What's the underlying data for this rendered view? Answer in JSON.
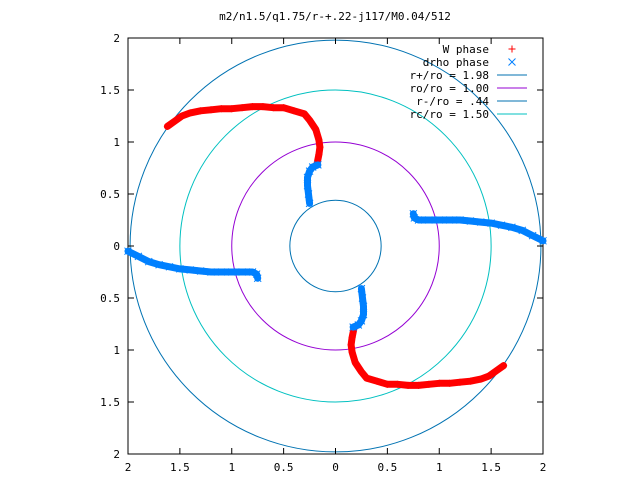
{
  "chart_data": {
    "type": "scatter",
    "title": "m2/n1.5/q1.75/r-+.22-j117/M0.04/512",
    "xlabel": "",
    "ylabel": "",
    "xlim": [
      -2,
      2
    ],
    "ylim": [
      -2,
      2
    ],
    "x_ticks": [
      {
        "value": -2,
        "label": "2"
      },
      {
        "value": -1.5,
        "label": "1.5"
      },
      {
        "value": -1,
        "label": "1"
      },
      {
        "value": -0.5,
        "label": "0.5"
      },
      {
        "value": 0,
        "label": "0"
      },
      {
        "value": 0.5,
        "label": "0.5"
      },
      {
        "value": 1,
        "label": "1"
      },
      {
        "value": 1.5,
        "label": "1.5"
      },
      {
        "value": 2,
        "label": "2"
      }
    ],
    "y_ticks": [
      {
        "value": 2,
        "label": "2"
      },
      {
        "value": 1.5,
        "label": "1.5"
      },
      {
        "value": 1,
        "label": "1"
      },
      {
        "value": 0.5,
        "label": "0.5"
      },
      {
        "value": 0,
        "label": "0"
      },
      {
        "value": -0.5,
        "label": "0.5"
      },
      {
        "value": -1,
        "label": "1"
      },
      {
        "value": -1.5,
        "label": "1.5"
      },
      {
        "value": -2,
        "label": "2"
      }
    ],
    "grid": false,
    "legend_position": "top-right",
    "series": [
      {
        "name": "W phase",
        "marker": "plus",
        "color": "#ff0000",
        "x": [
          -1.62,
          -1.55,
          -1.48,
          -1.4,
          -1.3,
          -1.2,
          -1.1,
          -1.0,
          -0.9,
          -0.8,
          -0.7,
          -0.6,
          -0.5,
          -0.4,
          -0.3,
          -0.25,
          -0.19,
          -0.16,
          -0.15,
          -0.16,
          -0.18,
          1.62,
          1.55,
          1.48,
          1.4,
          1.3,
          1.2,
          1.1,
          1.0,
          0.9,
          0.8,
          0.7,
          0.6,
          0.5,
          0.4,
          0.3,
          0.25,
          0.19,
          0.16,
          0.15,
          0.16,
          0.18
        ],
        "y": [
          1.15,
          1.2,
          1.25,
          1.28,
          1.3,
          1.31,
          1.32,
          1.32,
          1.33,
          1.34,
          1.34,
          1.33,
          1.33,
          1.3,
          1.27,
          1.21,
          1.12,
          1.02,
          0.95,
          0.88,
          0.78,
          -1.15,
          -1.2,
          -1.25,
          -1.28,
          -1.3,
          -1.31,
          -1.32,
          -1.32,
          -1.33,
          -1.34,
          -1.34,
          -1.33,
          -1.33,
          -1.3,
          -1.27,
          -1.21,
          -1.12,
          -1.02,
          -0.95,
          -0.88,
          -0.78
        ]
      },
      {
        "name": "drho phase",
        "marker": "cross",
        "color": "#0080ff",
        "x": [
          -2.0,
          -1.9,
          -1.8,
          -1.7,
          -1.6,
          -1.5,
          -1.4,
          -1.3,
          -1.2,
          -1.1,
          -1.0,
          -0.9,
          -0.8,
          -0.76,
          -0.75,
          -0.25,
          -0.26,
          -0.27,
          -0.27,
          -0.25,
          -0.22,
          -0.17,
          2.0,
          1.9,
          1.8,
          1.7,
          1.6,
          1.5,
          1.4,
          1.3,
          1.2,
          1.1,
          1.0,
          0.9,
          0.8,
          0.76,
          0.75,
          0.25,
          0.26,
          0.27,
          0.27,
          0.25,
          0.22,
          0.17
        ],
        "y": [
          -0.05,
          -0.1,
          -0.15,
          -0.18,
          -0.2,
          -0.22,
          -0.23,
          -0.24,
          -0.25,
          -0.25,
          -0.25,
          -0.25,
          -0.25,
          -0.27,
          -0.31,
          0.41,
          0.5,
          0.58,
          0.66,
          0.72,
          0.76,
          0.78,
          0.05,
          0.1,
          0.15,
          0.18,
          0.2,
          0.22,
          0.23,
          0.24,
          0.25,
          0.25,
          0.25,
          0.25,
          0.25,
          0.27,
          0.31,
          -0.41,
          -0.5,
          -0.58,
          -0.66,
          -0.72,
          -0.76,
          -0.78
        ]
      }
    ],
    "circles": [
      {
        "name": "r+/ro = 1.98",
        "radius": 1.98,
        "color": "#0072b2"
      },
      {
        "name": "ro/ro = 1.00",
        "radius": 1.0,
        "color": "#9400d3"
      },
      {
        "name": "r-/ro = .44",
        "radius": 0.44,
        "color": "#0072b2"
      },
      {
        "name": "rc/ro = 1.50",
        "radius": 1.5,
        "color": "#00c0c0"
      }
    ]
  }
}
